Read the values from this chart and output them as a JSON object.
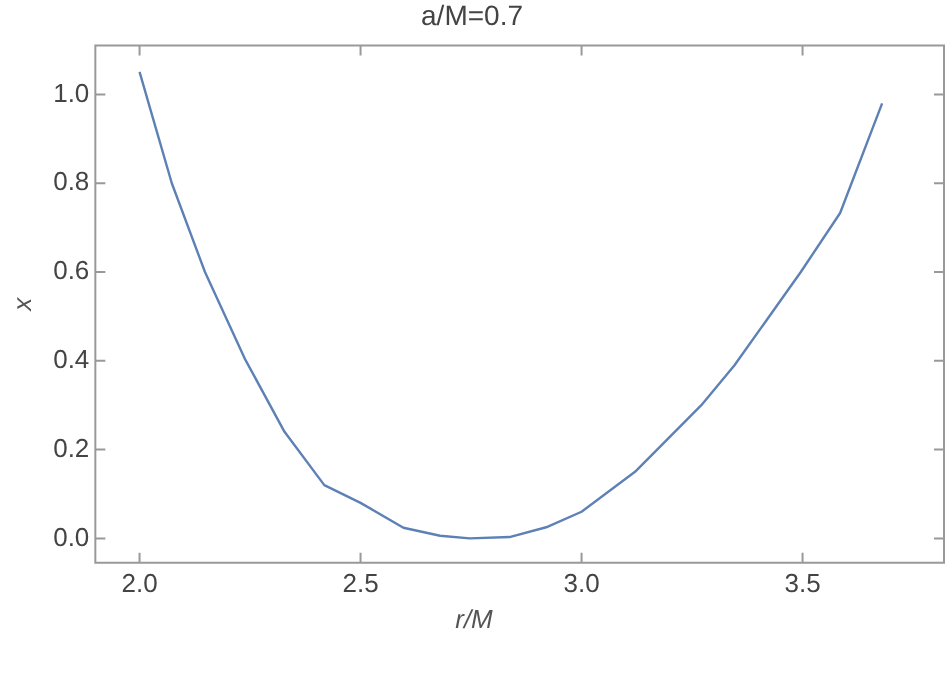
{
  "chart_data": {
    "type": "line",
    "title": "a/M=0.7",
    "xlabel": "r/M",
    "ylabel": "x",
    "color": "#5e81b5",
    "x": [
      2.0,
      2.036,
      2.073,
      2.148,
      2.238,
      2.328,
      2.418,
      2.5,
      2.597,
      2.68,
      2.747,
      2.837,
      2.92,
      3.0,
      3.121,
      3.271,
      3.346,
      3.496,
      3.585,
      3.68
    ],
    "values": [
      1.051,
      0.927,
      0.8,
      0.6,
      0.405,
      0.24,
      0.12,
      0.08,
      0.024,
      0.006,
      0.0,
      0.003,
      0.025,
      0.06,
      0.15,
      0.3,
      0.39,
      0.6,
      0.733,
      0.98
    ],
    "xlim": [
      1.9,
      3.82
    ],
    "ylim": [
      -0.055,
      1.11
    ],
    "xticks": [
      {
        "value": 2,
        "label": "2.0"
      },
      2.5,
      {
        "value": 3,
        "label": "3.0"
      },
      3.5
    ],
    "yticks": [
      {
        "value": 0,
        "label": "0.0"
      },
      0.2,
      0.4,
      0.6,
      0.8,
      {
        "value": 1,
        "label": "1.0"
      }
    ],
    "grid": false,
    "legend": false,
    "marker": "none",
    "line_style": "solid"
  }
}
